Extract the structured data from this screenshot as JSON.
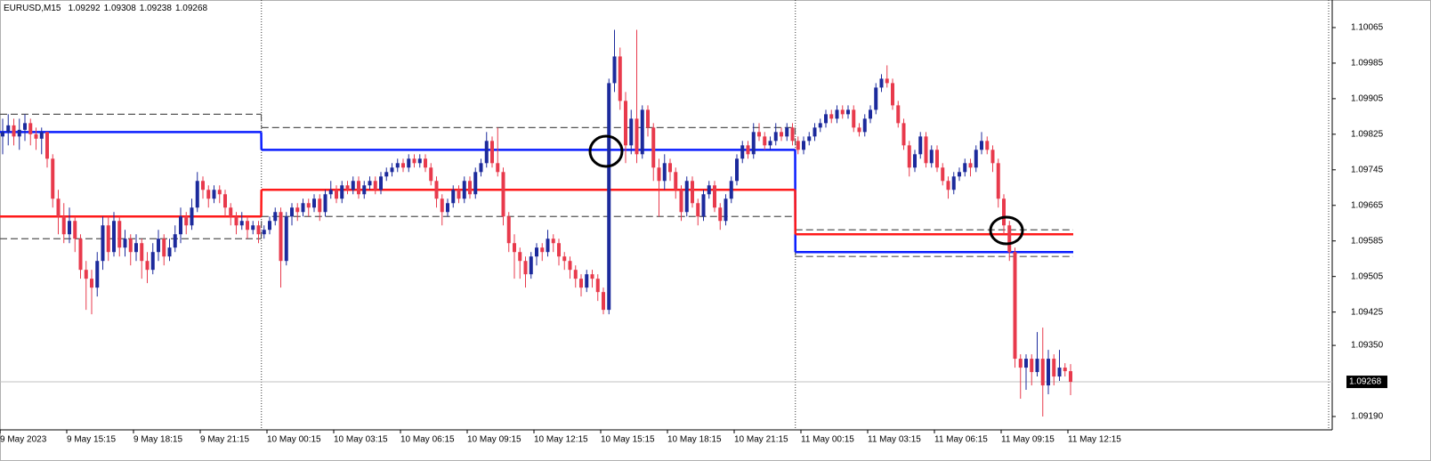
{
  "chart_data": {
    "type": "candlestick",
    "symbol": "EURUSD,M15",
    "up_color": "#1c2a9c",
    "down_color": "#e83a4c",
    "categories": [
      "9 May 2023",
      null,
      null,
      null,
      null,
      null,
      null,
      null,
      null,
      null,
      null,
      null,
      "9 May 15:15",
      null,
      null,
      null,
      null,
      null,
      null,
      null,
      null,
      null,
      null,
      null,
      "9 May 18:15",
      null,
      null,
      null,
      null,
      null,
      null,
      null,
      null,
      null,
      null,
      null,
      "9 May 21:15",
      null,
      null,
      null,
      null,
      null,
      null,
      null,
      null,
      null,
      null,
      null,
      "10 May 00:15",
      null,
      null,
      null,
      null,
      null,
      null,
      null,
      null,
      null,
      null,
      null,
      "10 May 03:15",
      null,
      null,
      null,
      null,
      null,
      null,
      null,
      null,
      null,
      null,
      null,
      "10 May 06:15",
      null,
      null,
      null,
      null,
      null,
      null,
      null,
      null,
      null,
      null,
      null,
      "10 May 09:15",
      null,
      null,
      null,
      null,
      null,
      null,
      null,
      null,
      null,
      null,
      null,
      "10 May 12:15",
      null,
      null,
      null,
      null,
      null,
      null,
      null,
      null,
      null,
      null,
      null,
      "10 May 15:15",
      null,
      null,
      null,
      null,
      null,
      null,
      null,
      null,
      null,
      null,
      null,
      "10 May 18:15",
      null,
      null,
      null,
      null,
      null,
      null,
      null,
      null,
      null,
      null,
      null,
      "10 May 21:15",
      null,
      null,
      null,
      null,
      null,
      null,
      null,
      null,
      null,
      null,
      null,
      "11 May 00:15",
      null,
      null,
      null,
      null,
      null,
      null,
      null,
      null,
      null,
      null,
      null,
      "11 May 03:15",
      null,
      null,
      null,
      null,
      null,
      null,
      null,
      null,
      null,
      null,
      null,
      "11 May 06:15",
      null,
      null,
      null,
      null,
      null,
      null,
      null,
      null,
      null,
      null,
      null,
      "11 May 09:15",
      null,
      null,
      null,
      null,
      null,
      null,
      null,
      null,
      null,
      null,
      null,
      "11 May 12:15"
    ],
    "candles": [
      [
        1.0982,
        1.0986,
        1.0978,
        1.0983
      ],
      [
        1.0983,
        1.0987,
        1.098,
        1.09845
      ],
      [
        1.09845,
        1.0986,
        1.098,
        1.0982
      ],
      [
        1.0982,
        1.0986,
        1.0979,
        1.09835
      ],
      [
        1.09835,
        1.0987,
        1.0981,
        1.0985
      ],
      [
        1.0985,
        1.0986,
        1.098,
        1.09825
      ],
      [
        1.09825,
        1.0984,
        1.0979,
        1.09815
      ],
      [
        1.09815,
        1.0984,
        1.0978,
        1.0983
      ],
      [
        1.0983,
        1.0983,
        1.0975,
        1.0977
      ],
      [
        1.0977,
        1.0978,
        1.0966,
        1.0968
      ],
      [
        1.0968,
        1.097,
        1.096,
        1.0964
      ],
      [
        1.0964,
        1.0967,
        1.0958,
        1.096
      ],
      [
        1.096,
        1.0966,
        1.0958,
        1.0963
      ],
      [
        1.0963,
        1.0964,
        1.0956,
        1.0959
      ],
      [
        1.0959,
        1.096,
        1.095,
        1.0952
      ],
      [
        1.0952,
        1.0954,
        1.0943,
        1.095
      ],
      [
        1.095,
        1.0952,
        1.0942,
        1.0948
      ],
      [
        1.0948,
        1.0956,
        1.0946,
        1.0954
      ],
      [
        1.0954,
        1.0964,
        1.0952,
        1.0962
      ],
      [
        1.0962,
        1.0964,
        1.0954,
        1.0956
      ],
      [
        1.0956,
        1.0965,
        1.0955,
        1.0963
      ],
      [
        1.0963,
        1.0964,
        1.0955,
        1.0957
      ],
      [
        1.0957,
        1.0961,
        1.0955,
        1.0959
      ],
      [
        1.0959,
        1.096,
        1.0953,
        1.0956
      ],
      [
        1.0956,
        1.096,
        1.0954,
        1.0958
      ],
      [
        1.0958,
        1.0959,
        1.095,
        1.0954
      ],
      [
        1.0954,
        1.0956,
        1.0949,
        1.0952
      ],
      [
        1.0952,
        1.0958,
        1.0951,
        1.0956
      ],
      [
        1.0956,
        1.0961,
        1.0954,
        1.0959
      ],
      [
        1.0959,
        1.096,
        1.0953,
        1.0955
      ],
      [
        1.0955,
        1.0959,
        1.0954,
        1.0957
      ],
      [
        1.0957,
        1.0962,
        1.0956,
        1.096
      ],
      [
        1.096,
        1.0966,
        1.0958,
        1.0964
      ],
      [
        1.0964,
        1.0965,
        1.096,
        1.0962
      ],
      [
        1.0962,
        1.0968,
        1.0961,
        1.0966
      ],
      [
        1.0966,
        1.0974,
        1.0965,
        1.0972
      ],
      [
        1.0972,
        1.0973,
        1.0968,
        1.097
      ],
      [
        1.097,
        1.0971,
        1.0966,
        1.0968
      ],
      [
        1.0968,
        1.0971,
        1.0967,
        1.097
      ],
      [
        1.097,
        1.0971,
        1.0967,
        1.0969
      ],
      [
        1.0969,
        1.097,
        1.0964,
        1.0966
      ],
      [
        1.0966,
        1.0967,
        1.0962,
        1.0964
      ],
      [
        1.0964,
        1.0965,
        1.096,
        1.0962
      ],
      [
        1.0962,
        1.0965,
        1.0961,
        1.0963
      ],
      [
        1.0963,
        1.0964,
        1.0959,
        1.0961
      ],
      [
        1.0961,
        1.0963,
        1.096,
        1.0962
      ],
      [
        1.0962,
        1.0963,
        1.0958,
        1.096
      ],
      [
        1.096,
        1.0962,
        1.0959,
        1.0961
      ],
      [
        1.0961,
        1.0964,
        1.096,
        1.0963
      ],
      [
        1.0963,
        1.0966,
        1.0962,
        1.0965
      ],
      [
        1.0965,
        1.0966,
        1.0948,
        1.0954
      ],
      [
        1.0954,
        1.0965,
        1.0953,
        1.0964
      ],
      [
        1.0964,
        1.0967,
        1.0962,
        1.0966
      ],
      [
        1.0966,
        1.0967,
        1.0963,
        1.0965
      ],
      [
        1.0965,
        1.0968,
        1.0964,
        1.0967
      ],
      [
        1.0967,
        1.0968,
        1.0964,
        1.0966
      ],
      [
        1.0966,
        1.0969,
        1.0965,
        1.0968
      ],
      [
        1.0968,
        1.0969,
        1.0963,
        1.0965
      ],
      [
        1.0965,
        1.097,
        1.0964,
        1.0969
      ],
      [
        1.0969,
        1.0972,
        1.0968,
        1.097
      ],
      [
        1.097,
        1.0971,
        1.0967,
        1.0968
      ],
      [
        1.0968,
        1.0972,
        1.0967,
        1.0971
      ],
      [
        1.0971,
        1.0972,
        1.0969,
        1.097
      ],
      [
        1.097,
        1.0973,
        1.0969,
        1.0972
      ],
      [
        1.0972,
        1.0973,
        1.0968,
        1.0969
      ],
      [
        1.0969,
        1.0972,
        1.0968,
        1.0971
      ],
      [
        1.0971,
        1.0973,
        1.097,
        1.0972
      ],
      [
        1.0972,
        1.0973,
        1.0969,
        1.097
      ],
      [
        1.097,
        1.0974,
        1.0969,
        1.0973
      ],
      [
        1.0973,
        1.0975,
        1.0972,
        1.0974
      ],
      [
        1.0974,
        1.0976,
        1.0973,
        1.0975
      ],
      [
        1.0975,
        1.0977,
        1.0974,
        1.0976
      ],
      [
        1.0976,
        1.0977,
        1.0974,
        1.0975
      ],
      [
        1.0975,
        1.0978,
        1.0974,
        1.0977
      ],
      [
        1.0977,
        1.0978,
        1.0975,
        1.0976
      ],
      [
        1.0976,
        1.0978,
        1.0975,
        1.0977
      ],
      [
        1.0977,
        1.0978,
        1.0974,
        1.0975
      ],
      [
        1.0975,
        1.0976,
        1.0971,
        1.0972
      ],
      [
        1.0972,
        1.0973,
        1.0966,
        1.0968
      ],
      [
        1.0968,
        1.0969,
        1.0962,
        1.0965
      ],
      [
        1.0965,
        1.0968,
        1.0964,
        1.0967
      ],
      [
        1.0967,
        1.0971,
        1.0966,
        1.097
      ],
      [
        1.097,
        1.0971,
        1.0967,
        1.0968
      ],
      [
        1.0968,
        1.0973,
        1.0967,
        1.0972
      ],
      [
        1.0972,
        1.0973,
        1.0968,
        1.0969
      ],
      [
        1.0969,
        1.0975,
        1.0968,
        1.0974
      ],
      [
        1.0974,
        1.0977,
        1.0973,
        1.0976
      ],
      [
        1.0976,
        1.0983,
        1.0975,
        1.0981
      ],
      [
        1.0981,
        1.0982,
        1.0975,
        1.0976
      ],
      [
        1.0976,
        1.0984,
        1.0973,
        1.0974
      ],
      [
        1.0974,
        1.0975,
        1.0962,
        1.0964
      ],
      [
        1.0964,
        1.0965,
        1.0956,
        1.0958
      ],
      [
        1.0958,
        1.096,
        1.095,
        1.0956
      ],
      [
        1.0956,
        1.0957,
        1.095,
        1.0954
      ],
      [
        1.0954,
        1.0955,
        1.0948,
        1.0951
      ],
      [
        1.0951,
        1.0956,
        1.095,
        1.0955
      ],
      [
        1.0955,
        1.0958,
        1.0953,
        1.0957
      ],
      [
        1.0957,
        1.0958,
        1.0954,
        1.0956
      ],
      [
        1.0956,
        1.0961,
        1.0955,
        1.0959
      ],
      [
        1.0959,
        1.096,
        1.0956,
        1.0958
      ],
      [
        1.0958,
        1.0959,
        1.0953,
        1.0955
      ],
      [
        1.0955,
        1.0956,
        1.0952,
        1.0954
      ],
      [
        1.0954,
        1.0955,
        1.095,
        1.0952
      ],
      [
        1.0952,
        1.0953,
        1.0948,
        1.095
      ],
      [
        1.095,
        1.0951,
        1.0946,
        1.0948
      ],
      [
        1.0948,
        1.0952,
        1.0947,
        1.0951
      ],
      [
        1.0951,
        1.0952,
        1.0948,
        1.095
      ],
      [
        1.095,
        1.0951,
        1.0945,
        1.0947
      ],
      [
        1.0947,
        1.0948,
        1.0942,
        1.0943
      ],
      [
        1.0943,
        1.0995,
        1.0942,
        1.0994
      ],
      [
        1.0994,
        1.1006,
        1.0992,
        1.1
      ],
      [
        1.1,
        1.1002,
        1.0988,
        1.099
      ],
      [
        1.099,
        1.0992,
        1.0976,
        1.098
      ],
      [
        1.098,
        1.0988,
        1.0978,
        1.0986
      ],
      [
        1.0986,
        1.1006,
        1.0976,
        1.0978
      ],
      [
        1.0978,
        1.0989,
        1.0977,
        1.0988
      ],
      [
        1.0988,
        1.0989,
        1.0982,
        1.0984
      ],
      [
        1.0984,
        1.0985,
        1.0972,
        1.0975
      ],
      [
        1.0975,
        1.0977,
        1.0964,
        1.0972
      ],
      [
        1.0972,
        1.0978,
        1.097,
        1.0976
      ],
      [
        1.0976,
        1.0977,
        1.0972,
        1.0974
      ],
      [
        1.0974,
        1.0975,
        1.0968,
        1.097
      ],
      [
        1.097,
        1.0971,
        1.0963,
        1.0965
      ],
      [
        1.0965,
        1.0973,
        1.0964,
        1.0972
      ],
      [
        1.0972,
        1.0973,
        1.0966,
        1.0967
      ],
      [
        1.0967,
        1.0968,
        1.0962,
        1.0964
      ],
      [
        1.0964,
        1.097,
        1.0963,
        1.0969
      ],
      [
        1.0969,
        1.0972,
        1.0968,
        1.0971
      ],
      [
        1.0971,
        1.0972,
        1.0965,
        1.0966
      ],
      [
        1.0966,
        1.0967,
        1.0961,
        1.0963
      ],
      [
        1.0963,
        1.0969,
        1.0962,
        1.0968
      ],
      [
        1.0968,
        1.0973,
        1.0967,
        1.0972
      ],
      [
        1.0972,
        1.0978,
        1.0971,
        1.0977
      ],
      [
        1.0977,
        1.0981,
        1.0976,
        1.098
      ],
      [
        1.098,
        1.0981,
        1.0977,
        1.0978
      ],
      [
        1.0978,
        1.0985,
        1.0977,
        1.0983
      ],
      [
        1.0983,
        1.0985,
        1.0981,
        1.0982
      ],
      [
        1.0982,
        1.0983,
        1.0979,
        1.098
      ],
      [
        1.098,
        1.0982,
        1.0979,
        1.0981
      ],
      [
        1.0981,
        1.0985,
        1.098,
        1.0983
      ],
      [
        1.0983,
        1.0984,
        1.0981,
        1.0982
      ],
      [
        1.0982,
        1.0985,
        1.0981,
        1.0984
      ],
      [
        1.0984,
        1.0985,
        1.098,
        1.0981
      ],
      [
        1.0981,
        1.0982,
        1.0978,
        1.0979
      ],
      [
        1.0979,
        1.0982,
        1.0978,
        1.0981
      ],
      [
        1.0981,
        1.0983,
        1.098,
        1.0982
      ],
      [
        1.0982,
        1.0985,
        1.0981,
        1.0984
      ],
      [
        1.0984,
        1.0986,
        1.0983,
        1.0985
      ],
      [
        1.0985,
        1.0988,
        1.0984,
        1.0987
      ],
      [
        1.0987,
        1.0988,
        1.0985,
        1.0986
      ],
      [
        1.0986,
        1.0989,
        1.0985,
        1.0988
      ],
      [
        1.0988,
        1.0989,
        1.0986,
        1.0987
      ],
      [
        1.0987,
        1.0989,
        1.0986,
        1.0988
      ],
      [
        1.0988,
        1.0989,
        1.0983,
        1.0984
      ],
      [
        1.0984,
        1.0985,
        1.0982,
        1.0983
      ],
      [
        1.0983,
        1.0987,
        1.0982,
        1.0986
      ],
      [
        1.0986,
        1.0989,
        1.0985,
        1.0988
      ],
      [
        1.0988,
        1.0994,
        1.0987,
        1.0993
      ],
      [
        1.0993,
        1.0996,
        1.0992,
        1.0995
      ],
      [
        1.0995,
        1.0998,
        1.0993,
        1.0994
      ],
      [
        1.0994,
        1.0995,
        1.0988,
        1.0989
      ],
      [
        1.0989,
        1.099,
        1.0984,
        1.0985
      ],
      [
        1.0985,
        1.0986,
        1.0979,
        1.098
      ],
      [
        1.098,
        1.0981,
        1.0973,
        1.0975
      ],
      [
        1.0975,
        1.0979,
        1.0974,
        1.0978
      ],
      [
        1.0978,
        1.0983,
        1.0977,
        1.0982
      ],
      [
        1.0982,
        1.0983,
        1.0975,
        1.0976
      ],
      [
        1.0976,
        1.098,
        1.0975,
        1.0979
      ],
      [
        1.0979,
        1.098,
        1.0974,
        1.0975
      ],
      [
        1.0975,
        1.0976,
        1.0971,
        1.0972
      ],
      [
        1.0972,
        1.0973,
        1.0968,
        1.097
      ],
      [
        1.097,
        1.0974,
        1.0969,
        1.0973
      ],
      [
        1.0973,
        1.0975,
        1.0972,
        1.0974
      ],
      [
        1.0974,
        1.0977,
        1.0973,
        1.0976
      ],
      [
        1.0976,
        1.0977,
        1.0973,
        1.0975
      ],
      [
        1.0975,
        1.098,
        1.0974,
        1.0979
      ],
      [
        1.0979,
        1.0983,
        1.0978,
        1.0981
      ],
      [
        1.0981,
        1.0982,
        1.0978,
        1.0979
      ],
      [
        1.0979,
        1.098,
        1.0974,
        1.0976
      ],
      [
        1.0976,
        1.0977,
        1.0966,
        1.0968
      ],
      [
        1.0968,
        1.0969,
        1.096,
        1.0962
      ],
      [
        1.0962,
        1.0963,
        1.0954,
        1.0956
      ],
      [
        1.0956,
        1.0957,
        1.093,
        1.0932
      ],
      [
        1.0932,
        1.0933,
        1.0923,
        1.093
      ],
      [
        1.093,
        1.0933,
        1.0925,
        1.0932
      ],
      [
        1.0932,
        1.0933,
        1.0926,
        1.0929
      ],
      [
        1.0929,
        1.0938,
        1.0928,
        1.0932
      ],
      [
        1.0932,
        1.0939,
        1.0919,
        1.0926
      ],
      [
        1.0926,
        1.0934,
        1.0924,
        1.0932
      ],
      [
        1.0932,
        1.0933,
        1.0926,
        1.0928
      ],
      [
        1.0928,
        1.0934,
        1.0927,
        1.093
      ],
      [
        1.093,
        1.0931,
        1.0928,
        1.09292
      ],
      [
        1.09292,
        1.09308,
        1.09238,
        1.09268
      ]
    ],
    "levels": [
      {
        "color": "#555555",
        "dashed": true,
        "values": [
          1.0987,
          1.0984,
          1.0961
        ]
      },
      {
        "color": "#555555",
        "dashed": true,
        "values": [
          1.0959,
          1.0964,
          1.0955
        ]
      },
      {
        "color": "#0a1eff",
        "dashed": false,
        "values": [
          1.0983,
          1.0979,
          1.0956
        ]
      },
      {
        "color": "#ff1a1a",
        "dashed": false,
        "values": [
          1.0964,
          1.097,
          1.096
        ]
      }
    ],
    "current_price": 1.09268,
    "ylim": [
      1.0916,
      1.10127
    ],
    "yticks": [
      1.10065,
      1.09985,
      1.09905,
      1.09825,
      1.09745,
      1.09665,
      1.09585,
      1.09505,
      1.09425,
      {
        "value": 1.0935,
        "label": "1.09350"
      },
      {
        "value": 1.0919,
        "label": "1.09190"
      }
    ]
  }
}
